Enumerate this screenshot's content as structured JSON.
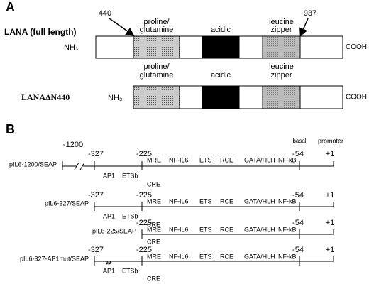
{
  "panel_a": {
    "label": "A",
    "constructs": [
      {
        "name": "LANA (full length)",
        "n_terminus": "NH₃",
        "c_terminus": "COOH",
        "markers": [
          "440",
          "937"
        ],
        "domains": [
          [
            "proline/",
            "glutamine"
          ],
          [
            "acidic"
          ],
          [
            "leucine",
            "zipper"
          ]
        ]
      },
      {
        "name": "LANAΔN440",
        "n_terminus": "NH₃",
        "c_terminus": "COOH",
        "domains": [
          [
            "proline/",
            "glutamine"
          ],
          [
            "acidic"
          ],
          [
            "leucine",
            "zipper"
          ]
        ]
      }
    ]
  },
  "panel_b": {
    "label": "B",
    "header": [
      "basal",
      "promoter"
    ],
    "constructs": [
      {
        "name": "pIL6-1200/SEAP",
        "positions": [
          "-1200",
          "-327",
          "-225",
          "-54",
          "+1"
        ],
        "elements": [
          "MRE",
          "NF-IL6",
          "ETS",
          "RCE",
          "GATA/HLH",
          "NF-kB"
        ],
        "lower_elements": [
          "AP1",
          "ETSb"
        ],
        "cre": "CRE"
      },
      {
        "name": "pIL6-327/SEAP",
        "positions": [
          "-327",
          "-225",
          "-54",
          "+1"
        ],
        "elements": [
          "MRE",
          "NF-IL6",
          "ETS",
          "RCE",
          "GATA/HLH",
          "NF-kB"
        ],
        "lower_elements": [
          "AP1",
          "ETSb"
        ],
        "cre": "CRE"
      },
      {
        "name": "pIL6-225/SEAP",
        "positions": [
          "-225",
          "-54",
          "+1"
        ],
        "elements": [
          "MRE",
          "NF-IL6",
          "ETS",
          "RCE",
          "GATA/HLH",
          "NF-kB"
        ],
        "cre": "CRE"
      },
      {
        "name": "pIL6-327-AP1mut/SEAP",
        "positions": [
          "-327",
          "-225",
          "-54",
          "+1"
        ],
        "elements": [
          "MRE",
          "NF-IL6",
          "ETS",
          "RCE",
          "GATA/HLH",
          "NF-kB"
        ],
        "lower_elements": [
          "AP1",
          "ETSb"
        ],
        "cre": "CRE",
        "mutation": "**"
      }
    ]
  }
}
